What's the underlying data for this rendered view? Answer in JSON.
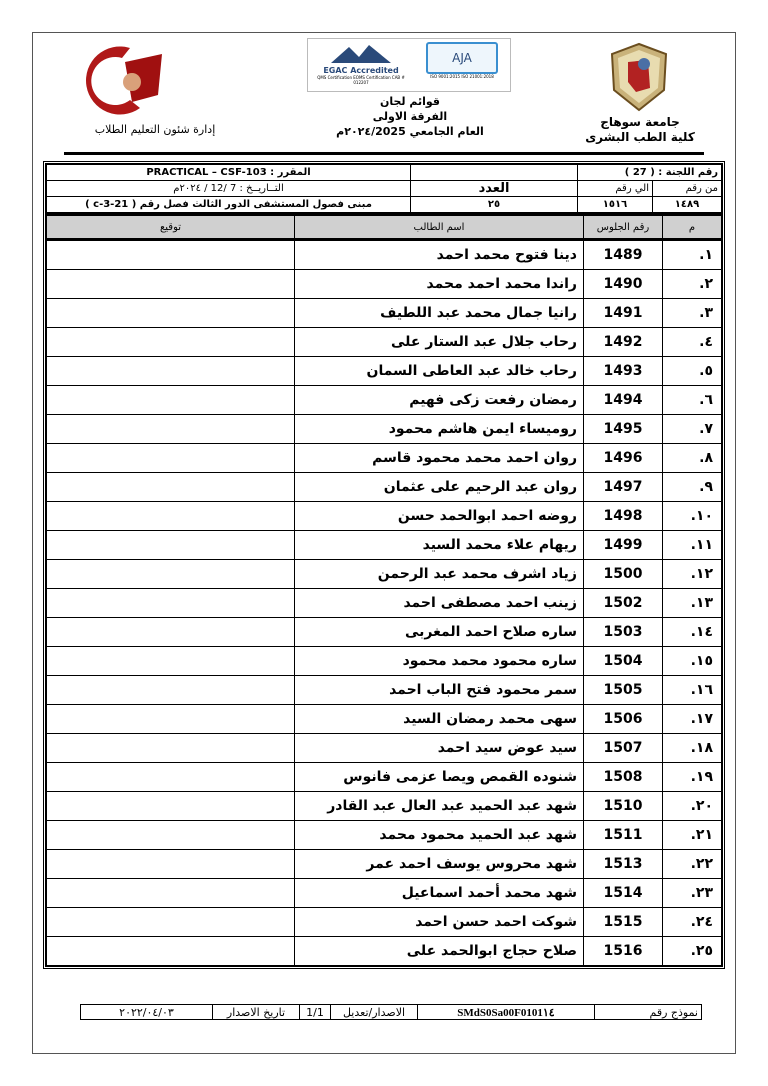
{
  "header": {
    "right_line1": "جامعة سوهاج",
    "right_line2": "كلية الطب البشرى",
    "center_line1": "قوائم لجان",
    "center_line2": "الفرقة الاولى",
    "center_line3": "العام الجامعي ٢٠٢٤/2025م",
    "left_line": "إدارة شئون التعليم الطلاب",
    "cert_logo_egac": "EGAC Accredited",
    "cert_egac_sub": "QMS Certification EOMS Certification CAB # 012207",
    "cert_logo_aja": "AJA",
    "cert_aja_sub": "ISO 9001:2015 ISO 21001:2018",
    "faculty_logo_text": "جامعة سوهاج كلية الطب"
  },
  "info": {
    "committee_label": "رقم اللجنة : ( 27 )",
    "course": "المقرر :  PRACTICAL – CSF-103",
    "date": "التــاريــخ :  7 /12 / ٢٠٢٤م",
    "from_label": "من رقم",
    "to_label": "الي رقم",
    "count_label": "العدد",
    "from_value": "١٤٨٩",
    "to_value": "١٥١٦",
    "count_value": "٢٥",
    "location": "مبنى فصول المستشفى الدور الثالث فصل رقم ( c-3-21 )"
  },
  "columns": {
    "index": "م",
    "seat": "رقم الجلوس",
    "name": "اسم الطالب",
    "signature": "توقيع"
  },
  "rows": [
    {
      "i": "١.",
      "seat": "1489",
      "name": "دينا فتوح محمد احمد"
    },
    {
      "i": "٢.",
      "seat": "1490",
      "name": "راندا محمد احمد محمد"
    },
    {
      "i": "٣.",
      "seat": "1491",
      "name": "رانيا جمال محمد عبد اللطيف"
    },
    {
      "i": "٤.",
      "seat": "1492",
      "name": "رحاب جلال عبد الستار على"
    },
    {
      "i": "٥.",
      "seat": "1493",
      "name": "رحاب خالد عبد العاطى السمان"
    },
    {
      "i": "٦.",
      "seat": "1494",
      "name": "رمضان رفعت زكى فهيم"
    },
    {
      "i": "٧.",
      "seat": "1495",
      "name": "روميساء ايمن هاشم محمود"
    },
    {
      "i": "٨.",
      "seat": "1496",
      "name": "روان احمد محمد محمود قاسم"
    },
    {
      "i": "٩.",
      "seat": "1497",
      "name": "روان عبد الرحيم على عثمان"
    },
    {
      "i": "١٠.",
      "seat": "1498",
      "name": "روضه احمد ابوالحمد حسن"
    },
    {
      "i": "١١.",
      "seat": "1499",
      "name": "ريهام علاء محمد السيد"
    },
    {
      "i": "١٢.",
      "seat": "1500",
      "name": "زياد اشرف محمد عبد الرحمن"
    },
    {
      "i": "١٣.",
      "seat": "1502",
      "name": "زينب احمد مصطفى احمد"
    },
    {
      "i": "١٤.",
      "seat": "1503",
      "name": "ساره صلاح احمد المغربى"
    },
    {
      "i": "١٥.",
      "seat": "1504",
      "name": "ساره محمود محمد محمود"
    },
    {
      "i": "١٦.",
      "seat": "1505",
      "name": "سمر محمود فتح الباب احمد"
    },
    {
      "i": "١٧.",
      "seat": "1506",
      "name": "سهى محمد رمضان السيد"
    },
    {
      "i": "١٨.",
      "seat": "1507",
      "name": "سيد عوض سيد احمد"
    },
    {
      "i": "١٩.",
      "seat": "1508",
      "name": "شنوده القمص ويصا عزمى فانوس"
    },
    {
      "i": "٢٠.",
      "seat": "1510",
      "name": "شهد عبد الحميد عبد العال عبد القادر"
    },
    {
      "i": "٢١.",
      "seat": "1511",
      "name": "شهد عبد الحميد محمود محمد"
    },
    {
      "i": "٢٢.",
      "seat": "1513",
      "name": "شهد محروس يوسف احمد عمر"
    },
    {
      "i": "٢٣.",
      "seat": "1514",
      "name": "شهد محمد أحمد اسماعيل"
    },
    {
      "i": "٢٤.",
      "seat": "1515",
      "name": "شوكت احمد حسن احمد"
    },
    {
      "i": "٢٥.",
      "seat": "1516",
      "name": "صلاح حجاج ابوالحمد على"
    }
  ],
  "footer": {
    "form_label": "نموذج رقم",
    "form_value": "SMdS0Sa00F0101١٤",
    "issue_label": "الاصدار/تعديل",
    "issue_value": "1/1",
    "issue_date_label": "تاريخ الاصدار",
    "issue_date_value": "٢٠٢٢/٠٤/٠٣"
  }
}
